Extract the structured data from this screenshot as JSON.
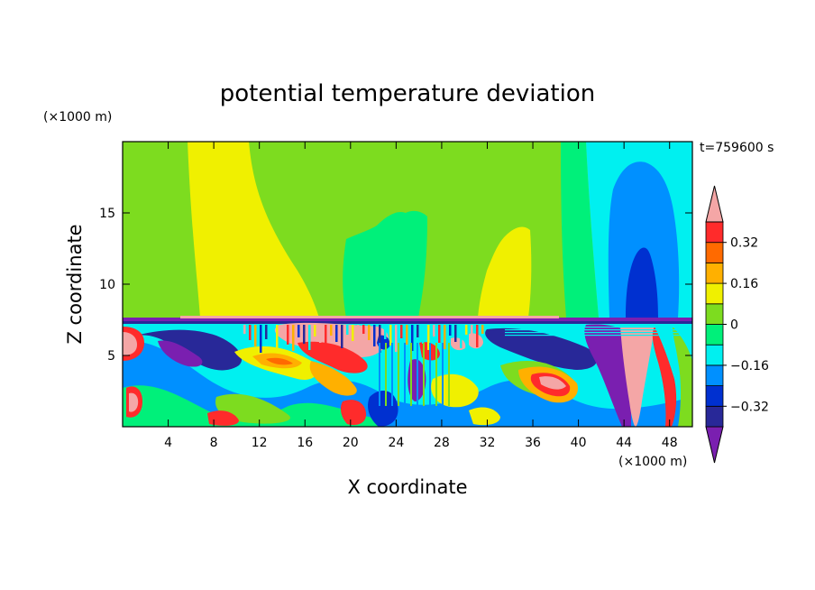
{
  "chart_data": {
    "type": "heatmap",
    "title": "potential temperature deviation",
    "xlabel": "X coordinate",
    "ylabel": "Z coordinate",
    "x_unit": "(×1000 m)",
    "y_unit": "(×1000 m)",
    "time_label": "t=759600 s",
    "xlim": [
      0,
      50
    ],
    "ylim": [
      0,
      20
    ],
    "x_ticks": [
      4,
      8,
      12,
      16,
      20,
      24,
      28,
      32,
      36,
      40,
      44,
      48
    ],
    "y_ticks": [
      5,
      10,
      15
    ],
    "colorbar": {
      "levels": [
        -0.4,
        -0.32,
        -0.24,
        -0.16,
        -0.08,
        0,
        0.08,
        0.16,
        0.24,
        0.32,
        0.4
      ],
      "labels": [
        "0.32",
        "0.16",
        "0",
        "−0.16",
        "−0.32"
      ],
      "label_values": [
        0.32,
        0.16,
        0,
        -0.16,
        -0.32
      ],
      "colors": [
        "#7a1fb0",
        "#282898",
        "#0030d0",
        "#0090ff",
        "#00f0f0",
        "#00f07a",
        "#7ddc1f",
        "#f0f000",
        "#ffb000",
        "#ff6a00",
        "#ff2b2b",
        "#f4a6a6"
      ]
    },
    "upper_layer_regions": [
      {
        "x": [
          0,
          4.5
        ],
        "value": 0.04,
        "class": "0 to 0.08"
      },
      {
        "x": [
          4.5,
          11
        ],
        "value": 0.12,
        "class": "0.08 to 0.16"
      },
      {
        "x": [
          11,
          18
        ],
        "value": 0.04,
        "class": "0 to 0.08"
      },
      {
        "x": [
          18,
          24
        ],
        "value": -0.04,
        "class": "-0.08 to 0"
      },
      {
        "x": [
          24,
          31
        ],
        "value": 0.04,
        "class": "0 to 0.08"
      },
      {
        "x": [
          31,
          38
        ],
        "value": 0.12,
        "class": "0.08 to 0.16"
      },
      {
        "x": [
          38,
          41
        ],
        "value": 0.04,
        "class": "0 to 0.08"
      },
      {
        "x": [
          41,
          43
        ],
        "value": -0.04,
        "class": "-0.08 to 0"
      },
      {
        "x": [
          43,
          44.5
        ],
        "value": -0.12,
        "class": "-0.16 to -0.08"
      },
      {
        "x": [
          44.5,
          47
        ],
        "value": -0.28,
        "class": "-0.32 to -0.24"
      },
      {
        "x": [
          47,
          50
        ],
        "value": -0.12,
        "class": "-0.16 to -0.08"
      }
    ]
  }
}
